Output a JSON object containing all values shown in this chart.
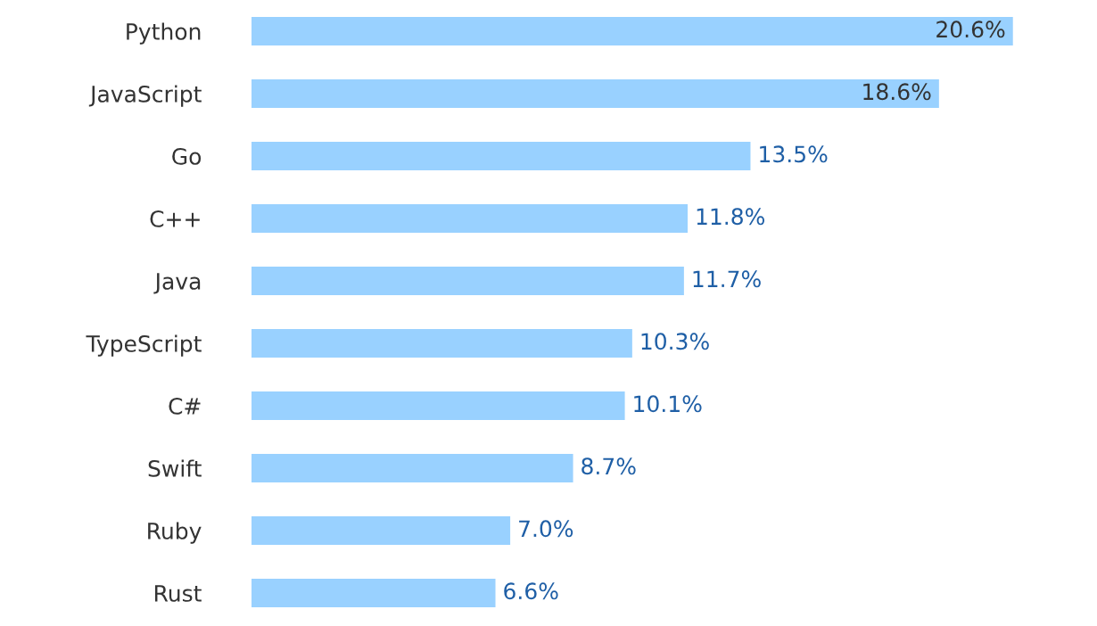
{
  "chart_data": {
    "type": "bar",
    "orientation": "horizontal",
    "categories": [
      "Python",
      "JavaScript",
      "Go",
      "C++",
      "Java",
      "TypeScript",
      "C#",
      "Swift",
      "Ruby",
      "Rust"
    ],
    "values": [
      20.6,
      18.6,
      13.5,
      11.8,
      11.7,
      10.3,
      10.1,
      8.7,
      7.0,
      6.6
    ],
    "value_labels": [
      "20.6%",
      "18.6%",
      "13.5%",
      "11.8%",
      "11.7%",
      "10.3%",
      "10.1%",
      "8.7%",
      "7.0%",
      "6.6%"
    ],
    "color": "#99d1ff",
    "grid": false,
    "legend": false
  }
}
